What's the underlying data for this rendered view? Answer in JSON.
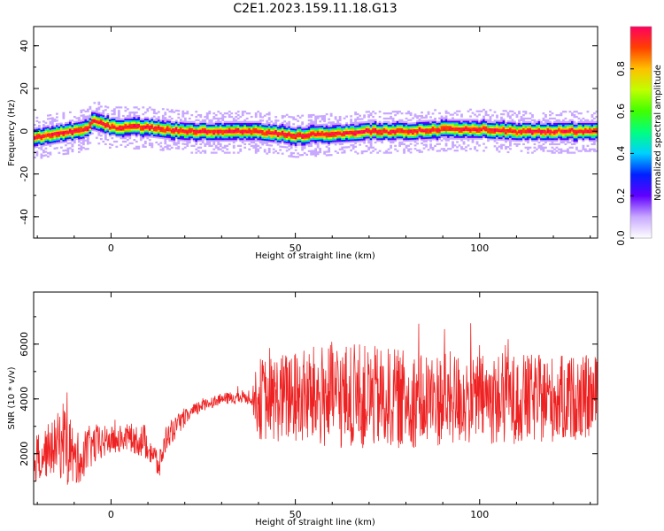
{
  "figure": {
    "title": "C2E1.2023.159.11.18.G13"
  },
  "chart_data": [
    {
      "type": "heatmap",
      "xlabel": "Height of straight line (km)",
      "ylabel": "Frequency (Hz)",
      "xlim": [
        -21,
        132
      ],
      "ylim": [
        -50,
        49
      ],
      "xticks": [
        0,
        50,
        100
      ],
      "yticks": [
        -40,
        -20,
        0,
        20,
        40
      ],
      "ridge": [
        {
          "x": -21,
          "y": -3
        },
        {
          "x": -15,
          "y": -1
        },
        {
          "x": -10,
          "y": 0
        },
        {
          "x": -7,
          "y": 1
        },
        {
          "x": -5,
          "y": 5
        },
        {
          "x": -3,
          "y": 4
        },
        {
          "x": 0,
          "y": 2
        },
        {
          "x": 10,
          "y": 2
        },
        {
          "x": 20,
          "y": 0
        },
        {
          "x": 30,
          "y": 0
        },
        {
          "x": 40,
          "y": 0
        },
        {
          "x": 50,
          "y": -2
        },
        {
          "x": 60,
          "y": -1
        },
        {
          "x": 70,
          "y": 0
        },
        {
          "x": 80,
          "y": 0
        },
        {
          "x": 90,
          "y": 1
        },
        {
          "x": 100,
          "y": 1
        },
        {
          "x": 110,
          "y": 0
        },
        {
          "x": 120,
          "y": 0
        },
        {
          "x": 132,
          "y": 0
        }
      ],
      "colorbar": {
        "label": "Normalized spectral amplitude",
        "range": [
          0,
          1
        ],
        "ticks": [
          "0.0",
          "0.2",
          "0.4",
          "0.6",
          "0.8"
        ],
        "colormap": [
          "#ffffff",
          "#c8a8ff",
          "#6000ff",
          "#0020ff",
          "#00d0ff",
          "#00ff80",
          "#40ff00",
          "#c0ff00",
          "#ffc000",
          "#ff4000",
          "#ff0060"
        ]
      }
    },
    {
      "type": "line",
      "xlabel": "Height of straight line (km)",
      "ylabel": "SNR (10 * v/v)",
      "xlim": [
        -21,
        132
      ],
      "ylim": [
        150,
        7900
      ],
      "xticks": [
        0,
        50,
        100
      ],
      "yticks": [
        2000,
        4000,
        6000
      ],
      "line_color": "#ee2222",
      "trend": [
        {
          "x": -21,
          "mean": 1800,
          "amp": 900
        },
        {
          "x": -15,
          "mean": 2300,
          "amp": 1000
        },
        {
          "x": -12,
          "mean": 2600,
          "amp": 1800
        },
        {
          "x": -10,
          "mean": 1700,
          "amp": 1000
        },
        {
          "x": -5,
          "mean": 2300,
          "amp": 800
        },
        {
          "x": 0,
          "mean": 2500,
          "amp": 500
        },
        {
          "x": 5,
          "mean": 2600,
          "amp": 500
        },
        {
          "x": 10,
          "mean": 2400,
          "amp": 700
        },
        {
          "x": 13,
          "mean": 1500,
          "amp": 500
        },
        {
          "x": 15,
          "mean": 2600,
          "amp": 500
        },
        {
          "x": 20,
          "mean": 3300,
          "amp": 300
        },
        {
          "x": 25,
          "mean": 3800,
          "amp": 250
        },
        {
          "x": 30,
          "mean": 4000,
          "amp": 200
        },
        {
          "x": 38,
          "mean": 4100,
          "amp": 300
        },
        {
          "x": 40,
          "mean": 4000,
          "amp": 1500
        },
        {
          "x": 60,
          "mean": 4100,
          "amp": 2000
        },
        {
          "x": 80,
          "mean": 4000,
          "amp": 1800
        },
        {
          "x": 100,
          "mean": 4000,
          "amp": 1700
        },
        {
          "x": 120,
          "mean": 4000,
          "amp": 1600
        },
        {
          "x": 132,
          "mean": 4100,
          "amp": 1500
        }
      ]
    }
  ]
}
